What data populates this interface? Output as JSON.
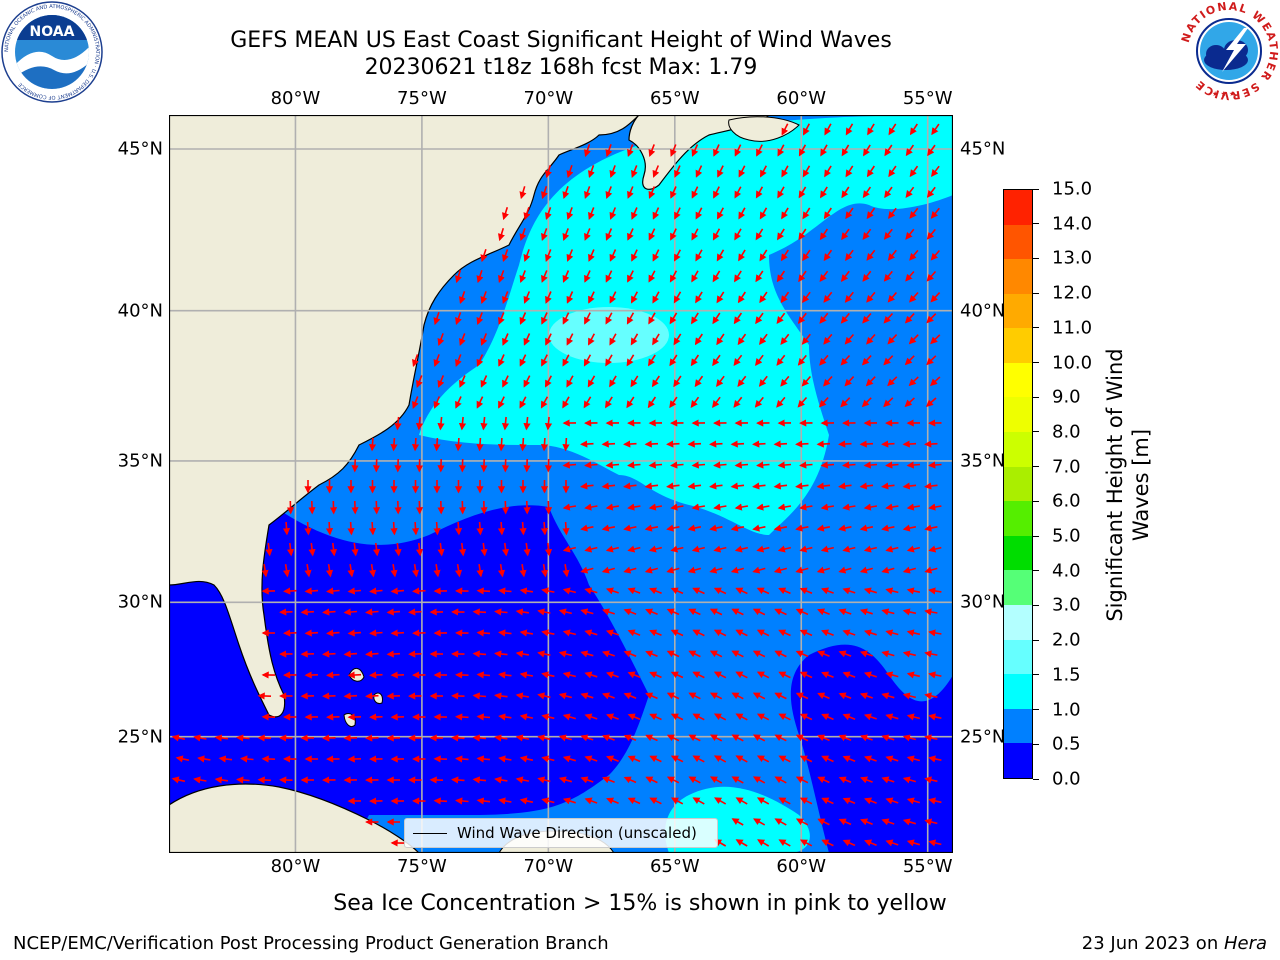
{
  "title": {
    "line1": "GEFS MEAN US East Coast Significant Height of Wind Waves",
    "line2": "20230621 t18z 168h fcst   Max: 1.79"
  },
  "map": {
    "lon_range": [
      -85,
      -54
    ],
    "lat_range": [
      20.5,
      46
    ],
    "lon_ticks": [
      "80°W",
      "75°W",
      "70°W",
      "65°W",
      "60°W",
      "55°W"
    ],
    "lon_tick_values": [
      -80,
      -75,
      -70,
      -65,
      -60,
      -55
    ],
    "lat_ticks": [
      "45°N",
      "40°N",
      "35°N",
      "30°N",
      "25°N"
    ],
    "lat_tick_values": [
      45,
      40,
      35,
      30,
      25
    ],
    "gridlines": true,
    "land_color": "#efedda",
    "arrow_color": "#ff0000",
    "legend_text": "Wind Wave Direction (unscaled)"
  },
  "colorbar": {
    "title": "Significant Height of Wind Waves [m]",
    "labels": [
      "0.0",
      "0.5",
      "1.0",
      "1.5",
      "2.0",
      "3.0",
      "4.0",
      "5.0",
      "6.0",
      "7.0",
      "8.0",
      "9.0",
      "10.0",
      "11.0",
      "12.0",
      "13.0",
      "14.0",
      "15.0"
    ],
    "colors": [
      "#0000ff",
      "#0080ff",
      "#00ffff",
      "#66ffff",
      "#b3ffff",
      "#55ff77",
      "#00dd00",
      "#55ee00",
      "#aaee00",
      "#ccff00",
      "#eeff00",
      "#ffff00",
      "#ffcc00",
      "#ffaa00",
      "#ff8800",
      "#ff5500",
      "#ff2200"
    ]
  },
  "caption": "Sea Ice Concentration > 15% is shown in pink to yellow",
  "footer": {
    "left": "NCEP/EMC/Verification Post Processing Product Generation Branch",
    "right_date": "23 Jun 2023 on ",
    "right_host": "Hera"
  },
  "logos": {
    "noaa_text": "NOAA",
    "noaa_ring_text": "NATIONAL OCEANIC AND ATMOSPHERIC ADMINISTRATION · U.S. DEPARTMENT OF COMMERCE",
    "nws_ring_text": "NATIONAL WEATHER SERVICE"
  }
}
